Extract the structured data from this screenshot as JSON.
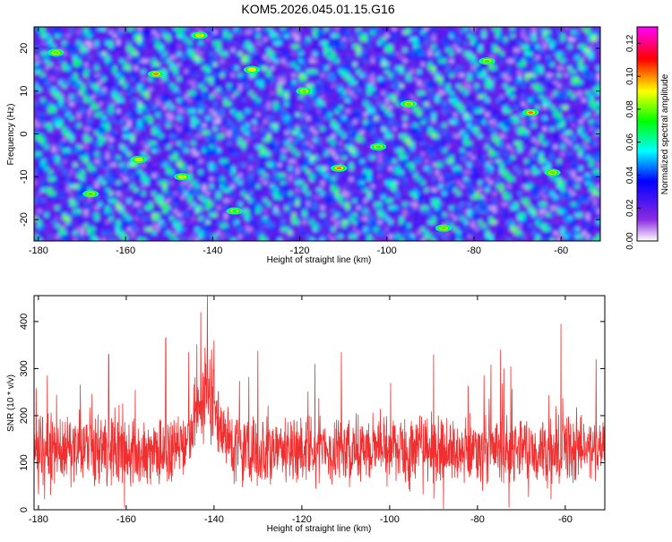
{
  "title": "KOM5.2026.045.01.15.G16",
  "colors": {
    "snr_line": "#f03030",
    "frame": "#000000",
    "background": "#ffffff"
  },
  "chart_data": [
    {
      "type": "heatmap",
      "title": "KOM5.2026.045.01.15.G16",
      "xlabel": "Height of straight line (km)",
      "ylabel": "Frequency (Hz)",
      "xlim": [
        -181,
        -51
      ],
      "ylim": [
        -25,
        25
      ],
      "xticks": [
        -180,
        -160,
        -140,
        -120,
        -100,
        -80,
        -60
      ],
      "yticks": [
        -20,
        -10,
        0,
        10,
        20
      ],
      "colorbar": {
        "label": "Normalized spectral amplitude",
        "range": [
          0,
          0.13
        ],
        "ticks": [
          0.0,
          0.02,
          0.04,
          0.06,
          0.08,
          0.1,
          0.12
        ],
        "colormap": [
          "#ffffff",
          "#8a2be2",
          "#0000ff",
          "#00ffff",
          "#00ff00",
          "#ffff00",
          "#ff0000",
          "#ff00ff"
        ]
      },
      "peaks": [
        {
          "x": -153,
          "y": 14,
          "v": 0.12
        },
        {
          "x": -131,
          "y": 15,
          "v": 0.11
        },
        {
          "x": -111,
          "y": -8,
          "v": 0.12
        },
        {
          "x": -67,
          "y": 5,
          "v": 0.12
        },
        {
          "x": -157,
          "y": -6,
          "v": 0.1
        },
        {
          "x": -147,
          "y": -10,
          "v": 0.1
        },
        {
          "x": -143,
          "y": 23,
          "v": 0.1
        },
        {
          "x": -119,
          "y": 10,
          "v": 0.09
        },
        {
          "x": -95,
          "y": 7,
          "v": 0.09
        },
        {
          "x": -87,
          "y": -22,
          "v": 0.09
        },
        {
          "x": -62,
          "y": -9,
          "v": 0.09
        },
        {
          "x": -176,
          "y": 19,
          "v": 0.09
        },
        {
          "x": -102,
          "y": -3,
          "v": 0.08
        },
        {
          "x": -77,
          "y": 17,
          "v": 0.08
        },
        {
          "x": -135,
          "y": -18,
          "v": 0.08
        },
        {
          "x": -168,
          "y": -14,
          "v": 0.08
        }
      ]
    },
    {
      "type": "line",
      "xlabel": "Height of straight line (km)",
      "ylabel": "SNR (10 * v/v)",
      "xlim": [
        -181,
        -51
      ],
      "ylim": [
        0,
        455
      ],
      "xticks": [
        -180,
        -160,
        -140,
        -120,
        -100,
        -80,
        -60
      ],
      "yticks": [
        0,
        100,
        200,
        300,
        400
      ],
      "baseline_mean": 128,
      "baseline_spread": 55,
      "peaks": [
        {
          "x": -141.5,
          "y": 455
        },
        {
          "x": -143,
          "y": 420
        },
        {
          "x": -140,
          "y": 360
        },
        {
          "x": -151,
          "y": 365
        },
        {
          "x": -61,
          "y": 395
        },
        {
          "x": -164,
          "y": 330
        },
        {
          "x": -130,
          "y": 338
        },
        {
          "x": -111,
          "y": 335
        },
        {
          "x": -90,
          "y": 330
        },
        {
          "x": -178,
          "y": 285
        },
        {
          "x": -117,
          "y": 310
        },
        {
          "x": -74,
          "y": 300
        },
        {
          "x": -53,
          "y": 320
        }
      ]
    }
  ]
}
